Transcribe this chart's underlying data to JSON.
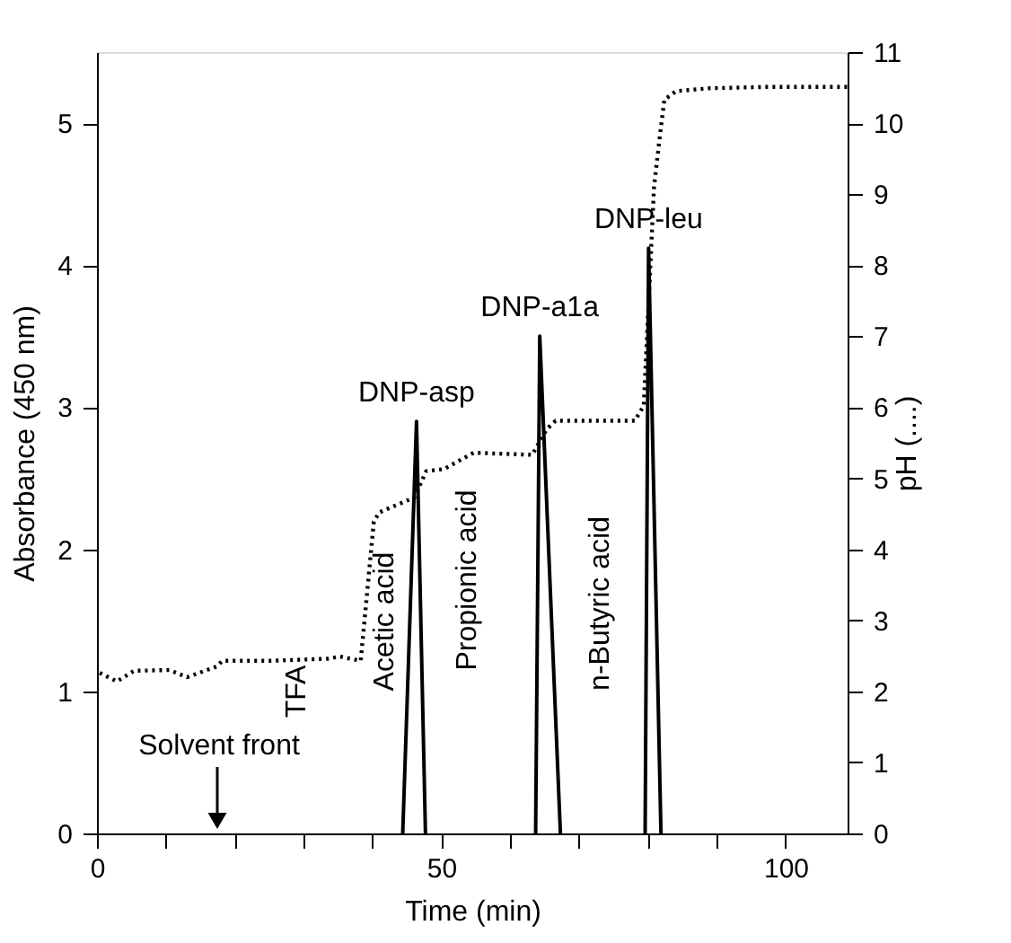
{
  "chart_data": {
    "type": "line",
    "xlabel": "Time (min)",
    "ylabel": "Absorbance (450 nm)",
    "y2label": "pH (....)",
    "xlim": [
      0,
      109
    ],
    "xticks": [
      0,
      {
        "value": 10,
        "label": null
      },
      {
        "value": 20,
        "label": null
      },
      {
        "value": 30,
        "label": null
      },
      {
        "value": 40,
        "label": null
      },
      50,
      {
        "value": 60,
        "label": null
      },
      {
        "value": 70,
        "label": null
      },
      {
        "value": 80,
        "label": null
      },
      {
        "value": 90,
        "label": null
      },
      100
    ],
    "ylim": [
      0,
      5.5
    ],
    "yticks": [
      0,
      1,
      2,
      3,
      4,
      5
    ],
    "y2lim": [
      0,
      11
    ],
    "y2ticks": [
      0,
      1,
      2,
      3,
      4,
      5,
      6,
      7,
      8,
      9,
      10,
      11
    ],
    "grid": false,
    "marker": "none",
    "series": [
      {
        "color": "#000000",
        "line_style": "solid",
        "x": [
          44.4,
          46.4,
          47.7,
          null,
          63.7,
          64.3,
          67.3,
          null,
          79.6,
          80.1,
          81.9
        ],
        "values": [
          0,
          2.9,
          0,
          null,
          0,
          3.5,
          0,
          null,
          0,
          4.12,
          0
        ]
      },
      {
        "color": "#000000",
        "line_style": "dotted",
        "axis": "y2",
        "x": [
          0.4,
          2.9,
          5.4,
          10.5,
          13.1,
          17.4,
          18.2,
          25,
          33.6,
          35.3,
          38.3,
          40.2,
          41,
          46.1,
          47.8,
          50.4,
          54.7,
          63.2,
          65.3,
          66.6,
          78.1,
          79.4,
          80.9,
          81.8,
          82.4,
          84.1,
          88.8,
          97.4,
          109
        ],
        "values": [
          2.26,
          2.14,
          2.29,
          2.3,
          2.2,
          2.35,
          2.43,
          2.43,
          2.46,
          2.49,
          2.43,
          4.39,
          4.52,
          4.73,
          5.1,
          5.13,
          5.36,
          5.33,
          5.69,
          5.81,
          5.81,
          6.02,
          9.11,
          9.87,
          10.33,
          10.45,
          10.49,
          10.51,
          10.51
        ]
      }
    ],
    "annotations": [
      {
        "text": "DNP-asp",
        "x": 46.4,
        "y": 2.9
      },
      {
        "text": "DNP-a1a",
        "x": 64.3,
        "y": 3.5
      },
      {
        "text": "DNP-leu",
        "x": 80.1,
        "y": 4.12
      },
      "TFA",
      "Acetic acid",
      "Propionic acid",
      "n-Butyric acid",
      "Solvent front"
    ]
  }
}
